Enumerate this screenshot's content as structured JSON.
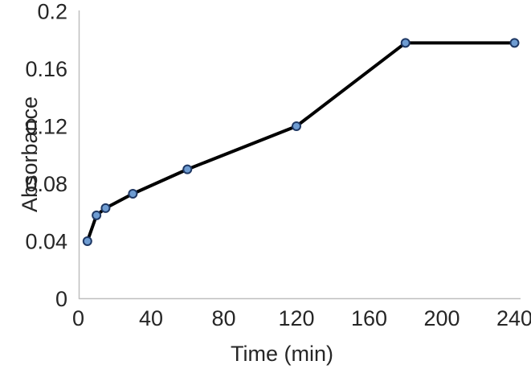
{
  "chart_data": {
    "type": "line",
    "xlabel": "Time (min)",
    "ylabel": "Absorbance",
    "x": [
      5,
      10,
      15,
      30,
      60,
      120,
      180,
      240
    ],
    "y": [
      0.04,
      0.058,
      0.063,
      0.073,
      0.09,
      0.12,
      0.178,
      0.178
    ],
    "xlim": [
      0,
      240
    ],
    "ylim": [
      0,
      0.2
    ],
    "x_tick_labels": [
      "0",
      "40",
      "80",
      "120",
      "160",
      "200",
      "240"
    ],
    "y_tick_labels": [
      "0",
      "0.04",
      "0.08",
      "0.12",
      "0.16",
      "0.2"
    ],
    "grid": false,
    "legend": false,
    "colors": {
      "line": "#000000",
      "marker_fill": "#6E9CD2",
      "marker_stroke": "#1F3864",
      "axis": "#BFBFBF",
      "text": "#262626",
      "background": "#FFFFFF"
    }
  }
}
